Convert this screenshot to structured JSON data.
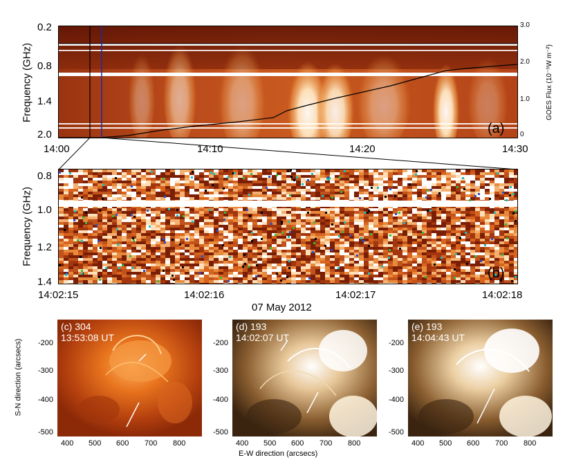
{
  "panel_a": {
    "tag": "(a)",
    "ylabel": "Frequency (GHz)",
    "y_ticks": [
      "0.2",
      "0.8",
      "1.4",
      "2.0"
    ],
    "x_ticks": [
      "14:00",
      "14:10",
      "14:20",
      "14:30"
    ],
    "right_label": "GOES Flux (10⁻⁵W m⁻²)",
    "right_ticks": [
      "3.0",
      "2.0",
      "1.0",
      "0"
    ]
  },
  "panel_b": {
    "tag": "(b)",
    "ylabel": "Frequency (GHz)",
    "y_ticks": [
      "0.8",
      "1.0",
      "1.2",
      "1.4"
    ],
    "x_ticks": [
      "14:02:15",
      "14:02:16",
      "14:02:17",
      "14:02:18"
    ],
    "xlabel": "07 May 2012"
  },
  "images": {
    "ylabel": "S-N direction (arcsecs)",
    "xlabel": "E-W direction (arcsecs)",
    "y_ticks": [
      "-200",
      "-300",
      "-400",
      "-500"
    ],
    "x_ticks": [
      "400",
      "500",
      "600",
      "700",
      "800"
    ],
    "panels": [
      {
        "tag": "(c) 304",
        "time": "13:53:08 UT"
      },
      {
        "tag": "(d) 193",
        "time": "14:02:07 UT"
      },
      {
        "tag": "(e) 193",
        "time": "14:04:43 UT"
      }
    ]
  },
  "colors": {
    "dark_red": "#7a1e05",
    "orange": "#d8641e",
    "bright": "#ffd9a8",
    "aia193_dark": "#3a2410",
    "aia193_mid": "#8a5e30",
    "marker_blue": "#1f2a9c"
  }
}
